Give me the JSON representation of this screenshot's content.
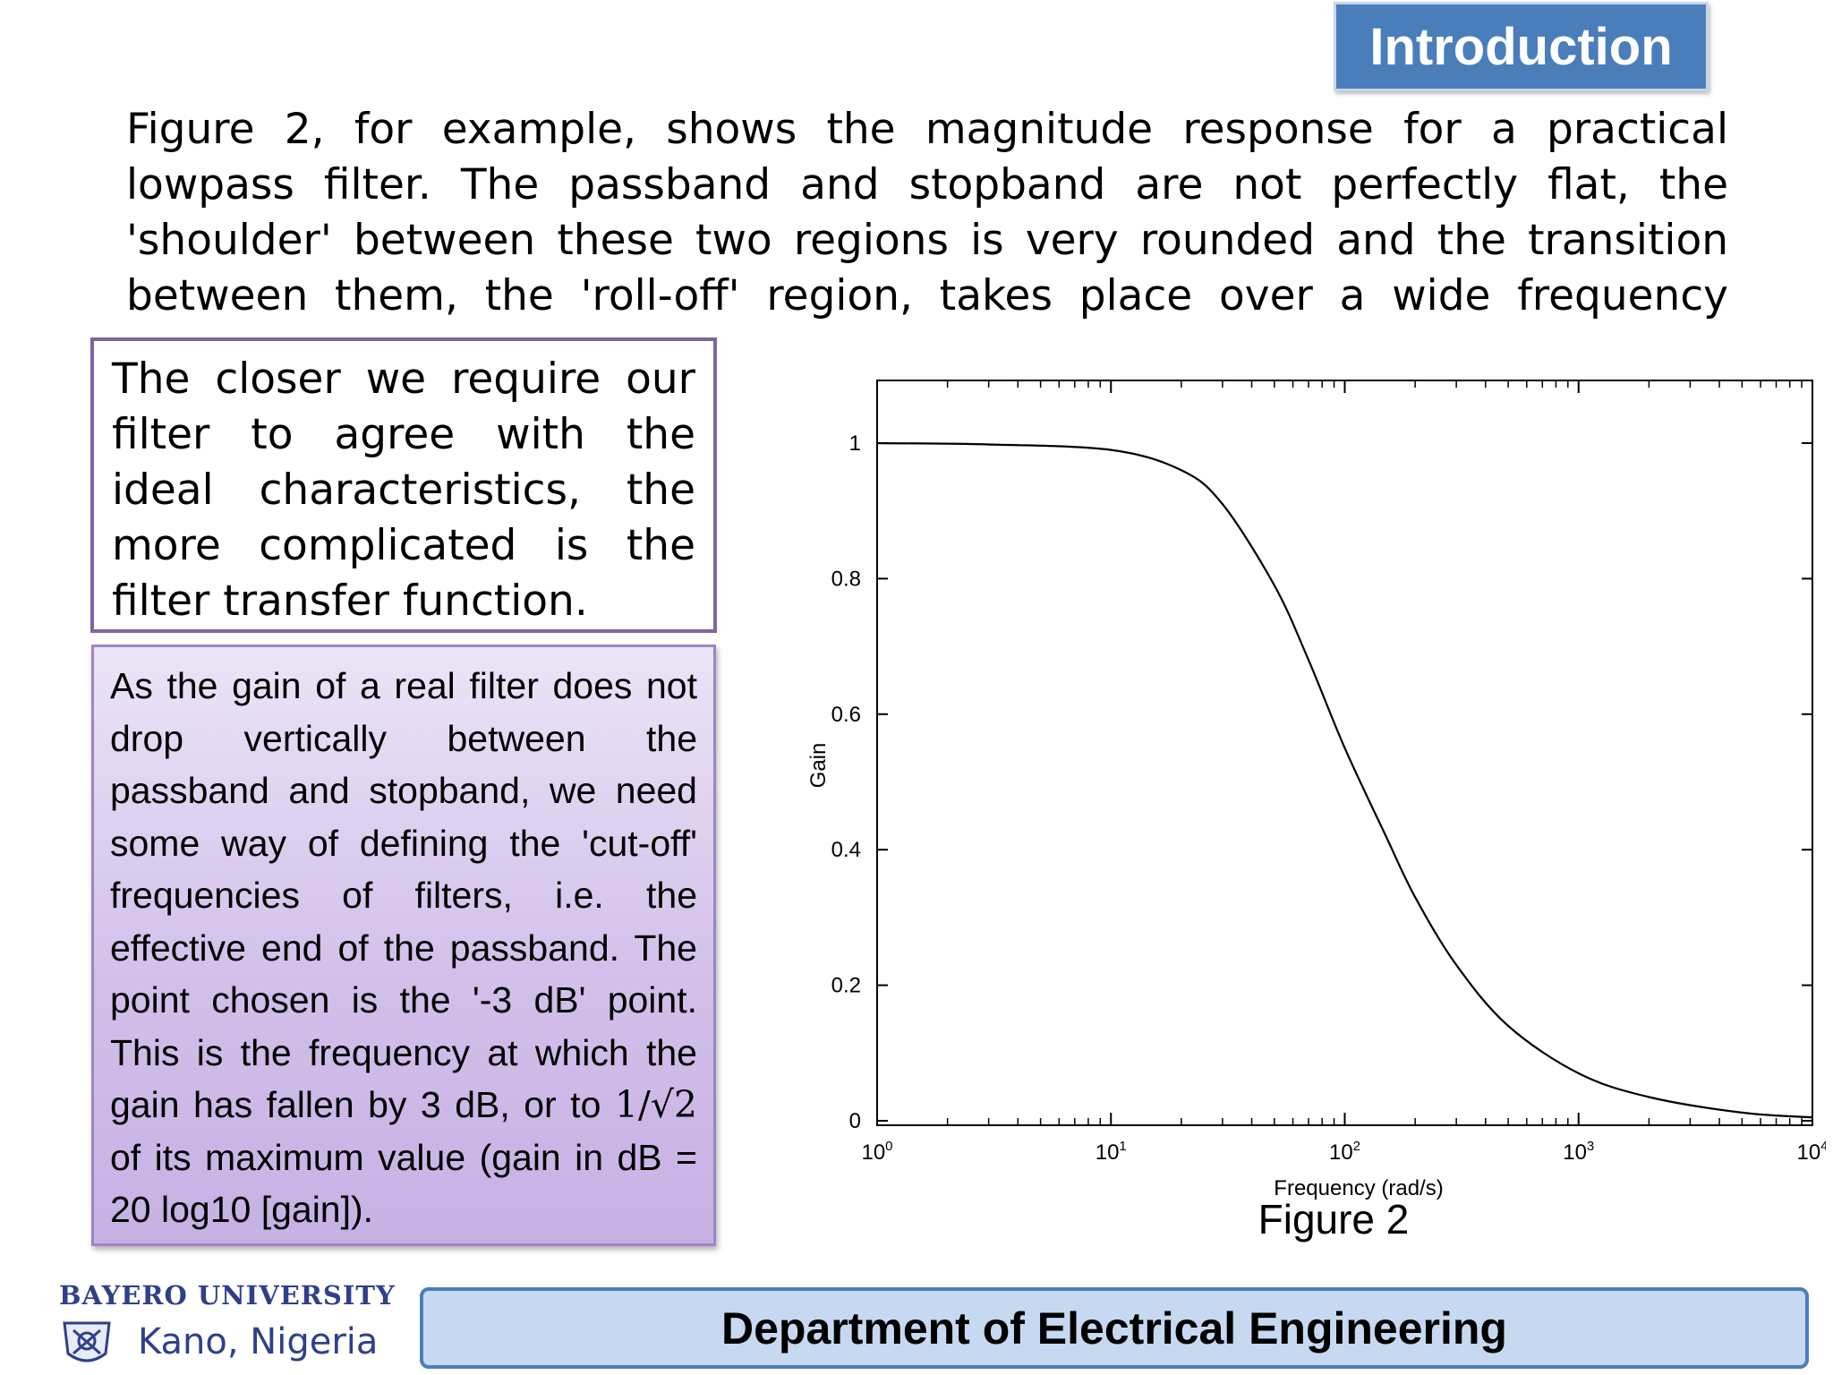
{
  "slide": {
    "title": "Introduction",
    "intro_paragraph": "Figure 2, for example, shows the magnitude response for a practical lowpass filter. The passband and stopband are not perfectly flat, the 'shoulder' between these two regions is very rounded and the transition between them, the 'roll-off' region, takes place over a wide frequency",
    "box1_text": "The closer we require our filter to agree with the ideal characteristics, the more complicated is the filter transfer function.",
    "box2_text_before": "As the gain of a real filter does not drop vertically between the passband and stopband, we need some way of defining the 'cut-off' frequencies of filters, i.e. the effective end of the passband. The point chosen is the '-3 dB' point. This is the frequency at which the gain has fallen by 3 dB, or to ",
    "box2_math": "1/√2",
    "box2_text_after": " of its maximum value (gain in dB = 20 log10 [gain]).",
    "figure_caption": "Figure 2",
    "footer": {
      "university": "BAYERO UNIVERSITY",
      "location": "Kano, Nigeria",
      "department": "Department of Electrical Engineering"
    }
  },
  "chart_data": {
    "type": "line",
    "xlabel": "Frequency (rad/s)",
    "ylabel": "Gain",
    "x_scale": "log",
    "xlim": [
      1,
      10000
    ],
    "ylim": [
      0,
      1
    ],
    "x_ticks": [
      {
        "base": "10",
        "exp": "0"
      },
      {
        "base": "10",
        "exp": "1"
      },
      {
        "base": "10",
        "exp": "2"
      },
      {
        "base": "10",
        "exp": "3"
      },
      {
        "base": "10",
        "exp": "4"
      }
    ],
    "y_ticks": [
      "0",
      "0.2",
      "0.4",
      "0.6",
      "0.8",
      "1"
    ],
    "grid": false,
    "series": [
      {
        "x": [
          1,
          3,
          10,
          20,
          30,
          50,
          70,
          100,
          150,
          200,
          300,
          500,
          1000,
          2000,
          5000,
          10000
        ],
        "y": [
          1.0,
          0.998,
          0.99,
          0.96,
          0.91,
          0.79,
          0.68,
          0.55,
          0.42,
          0.33,
          0.23,
          0.14,
          0.07,
          0.035,
          0.012,
          0.005
        ]
      }
    ]
  }
}
